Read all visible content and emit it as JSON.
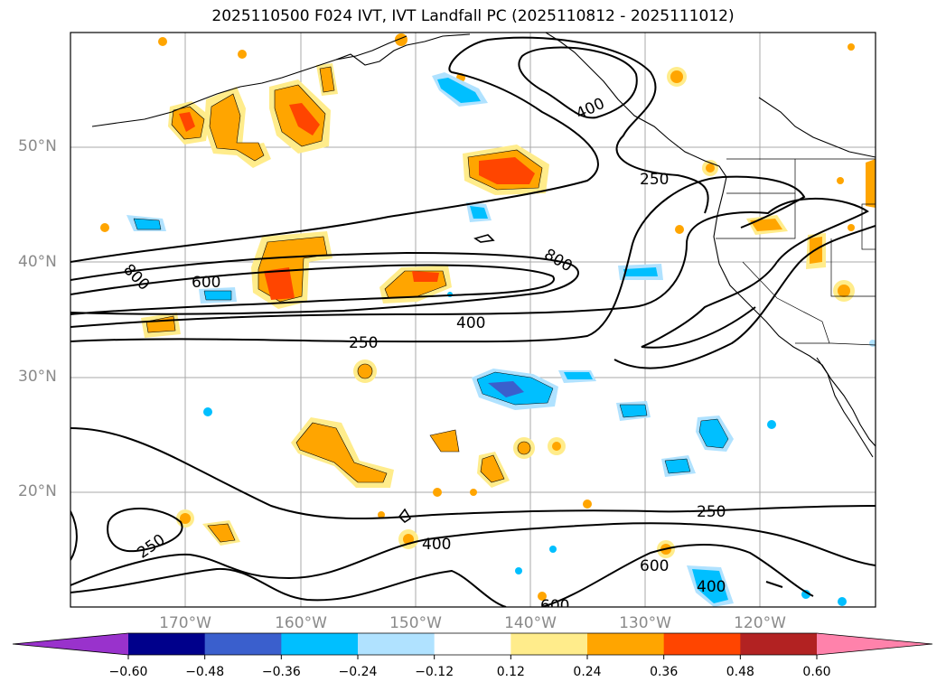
{
  "title": "2025110500 F024 IVT, IVT Landfall PC (2025110812 - 2025111012)",
  "map": {
    "lat_labels": [
      "50°N",
      "40°N",
      "30°N",
      "20°N"
    ],
    "lon_labels": [
      "170°W",
      "160°W",
      "150°W",
      "140°W",
      "130°W",
      "120°W"
    ],
    "gridlines": true
  },
  "contour_labels": [
    "400",
    "250",
    "800",
    "600",
    "800",
    "400",
    "250",
    "250",
    "250",
    "400",
    "600",
    "400",
    "600"
  ],
  "colorbar": {
    "ticks": [
      "−0.60",
      "−0.48",
      "−0.36",
      "−0.24",
      "−0.12",
      "0.12",
      "0.24",
      "0.36",
      "0.48",
      "0.60"
    ],
    "colors": [
      "#9932cc",
      "#00008b",
      "#3a5fcd",
      "#00bfff",
      "#b0e2ff",
      "#ffffff",
      "#ffec8b",
      "#ffa500",
      "#ff4500",
      "#b22222",
      "#ff82ab"
    ]
  },
  "chart_data": {
    "type": "heatmap",
    "title": "2025110500 F024 IVT, IVT Landfall PC (2025110812 - 2025111012)",
    "xlabel": "",
    "ylabel": "",
    "x_ticks": [
      "170°W",
      "160°W",
      "150°W",
      "140°W",
      "130°W",
      "120°W"
    ],
    "y_ticks": [
      "50°N",
      "40°N",
      "30°N",
      "20°N"
    ],
    "contour_levels": [
      250,
      400,
      600,
      800
    ],
    "colorbar_levels": [
      -0.6,
      -0.48,
      -0.36,
      -0.24,
      -0.12,
      0.12,
      0.24,
      0.36,
      0.48,
      0.6
    ],
    "extend": "both",
    "grid": true
  }
}
